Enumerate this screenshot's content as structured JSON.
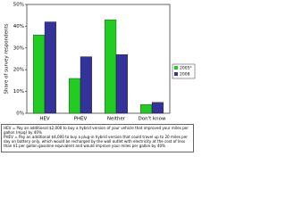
{
  "chart_data": {
    "type": "bar",
    "y_label": "Share of survey respondents",
    "categories": [
      "HEV",
      "PHEV",
      "Neither",
      "Don't know"
    ],
    "series": [
      {
        "name": "2005*",
        "color": "#22cc22",
        "values": [
          36,
          16,
          43,
          4
        ]
      },
      {
        "name": "2008",
        "color": "#333399",
        "values": [
          42,
          26,
          27,
          5
        ]
      }
    ],
    "ylim": [
      0,
      50
    ],
    "yticks": [
      {
        "value": 0,
        "label": "0%"
      },
      {
        "value": 10,
        "label": "10%"
      },
      {
        "value": 20,
        "label": "20%"
      },
      {
        "value": 30,
        "label": "30%"
      },
      {
        "value": 40,
        "label": "40%"
      },
      {
        "value": 50,
        "label": "50%"
      }
    ],
    "legend": "right",
    "notes": [
      "HEV = Pay an additional $2,000 to buy a hybrid version of your vehicle that improved your miles per gallon (mpg) by 40%",
      "PHEV = Pay an additional $4,000 to buy a plug-in hybrid version that could travel up to 20 miles per day on battery only, which would be recharged by the wall outlet with electricity at the cost of less than $1 per gallon gasoline equivalent and would improve your miles per gallon by 40%"
    ]
  }
}
